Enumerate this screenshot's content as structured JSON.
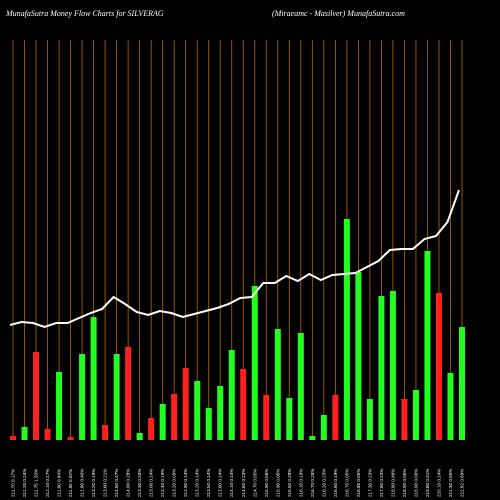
{
  "chart_data": {
    "type": "money-flow",
    "title": "MunafaSutra  Money Flow  Charts for SILVERAG",
    "subtitle": "(Miraeamc -  Masilver) MunafaSutra.com",
    "categories": [
      "211.70 0.17%",
      "212.20 0.24%",
      "211.75 1.33%",
      "212.10 0.17%",
      "211.90 0.84%",
      "211.95 0.02%",
      "212.80 0.40%",
      "213.20 0.19%",
      "213.60 0.21%",
      "214.60 0.47%",
      "214.00 0.28%",
      "213.30 0.33%",
      "213.00 0.14%",
      "213.40 0.19%",
      "213.20 0.09%",
      "212.90 0.14%",
      "213.20 0.14%",
      "213.50 0.14%",
      "213.80 0.14%",
      "214.10 0.14%",
      "214.60 0.23%",
      "214.70 0.05%",
      "215.90 0.56%",
      "215.90 0.00%",
      "216.50 0.28%",
      "216.10 0.19%",
      "216.70 0.28%",
      "216.20 0.23%",
      "216.60 0.19%",
      "216.70 0.05%",
      "216.80 0.05%",
      "217.30 0.23%",
      "217.80 0.23%",
      "218.80 0.46%",
      "218.90 0.05%",
      "218.90 0.00%",
      "219.80 0.41%",
      "220.10 0.14%",
      "221.30 0.55%",
      "222.82 0.69%"
    ],
    "values": [
      4,
      13,
      88,
      11,
      68,
      3,
      86,
      123,
      15,
      86,
      93,
      7,
      22,
      36,
      46,
      72,
      59,
      32,
      54,
      90,
      71,
      154,
      45,
      111,
      42,
      107,
      4,
      25,
      45,
      221,
      168,
      41,
      144,
      149,
      41,
      50,
      189,
      147,
      67,
      113
    ],
    "colors": [
      "#ff2020",
      "#20ff20",
      "#ff2020",
      "#ff2020",
      "#20ff20",
      "#ff2020",
      "#20ff20",
      "#20ff20",
      "#ff2020",
      "#20ff20",
      "#ff2020",
      "#20ff20",
      "#ff2020",
      "#20ff20",
      "#ff2020",
      "#ff2020",
      "#20ff20",
      "#20ff20",
      "#20ff20",
      "#20ff20",
      "#ff2020",
      "#20ff20",
      "#ff2020",
      "#20ff20",
      "#20ff20",
      "#20ff20",
      "#20ff20",
      "#20ff20",
      "#ff2020",
      "#20ff20",
      "#20ff20",
      "#20ff20",
      "#20ff20",
      "#20ff20",
      "#ff2020",
      "#20ff20",
      "#20ff20",
      "#ff2020",
      "#20ff20",
      "#20ff20"
    ],
    "line_values": [
      115,
      118,
      117,
      113,
      117,
      117,
      122,
      127,
      131,
      143,
      136,
      128,
      125,
      129,
      127,
      123,
      126,
      129,
      132,
      136,
      142,
      143,
      157,
      157,
      164,
      159,
      166,
      160,
      165,
      166,
      167,
      173,
      179,
      190,
      191,
      191,
      201,
      204,
      218,
      250
    ],
    "line_color": "#ffffff",
    "ylim": [
      0,
      400
    ]
  }
}
